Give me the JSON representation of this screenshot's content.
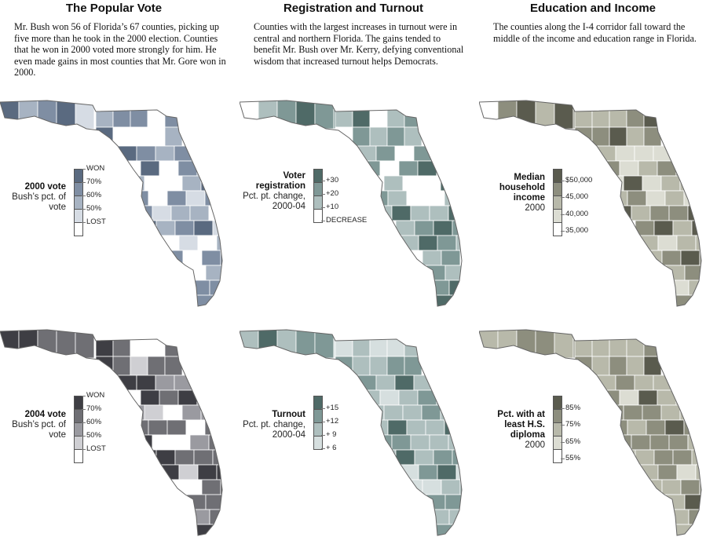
{
  "columns": [
    {
      "title": "The Popular Vote",
      "text": "Mr. Bush won 56 of Florida’s 67 counties, picking up five more than he took in the 2000 election. Counties that he won in 2000 voted more strongly for him. He even made gains in most counties that Mr. Gore won in 2000.",
      "maps": [
        {
          "legend_bold": "2000 vote",
          "legend_sub": "Bush’s pct. of vote",
          "ticks": [
            "WON",
            "70%",
            "60%",
            "50%",
            "LOST"
          ],
          "colors": [
            "#5a6a80",
            "#7f8ea3",
            "#a7b3c2",
            "#d6dce4",
            "#ffffff"
          ]
        },
        {
          "legend_bold": "2004 vote",
          "legend_sub": "Bush’s pct. of vote",
          "ticks": [
            "WON",
            "70%",
            "60%",
            "50%",
            "LOST"
          ],
          "colors": [
            "#3e3e44",
            "#6f6f74",
            "#9a9aa0",
            "#cfcfd3",
            "#ffffff"
          ]
        }
      ]
    },
    {
      "title": "Registration and Turnout",
      "text": "Counties with the largest increases in turnout were in central and northern Florida. The gains tended to benefit Mr. Bush over Mr. Kerry, defying conventional wisdom that increased turnout helps Democrats.",
      "maps": [
        {
          "legend_bold": "Voter registration",
          "legend_sub": "Pct. pt. change, 2000-04",
          "ticks": [
            "+30",
            "+20",
            "+10",
            "DECREASE"
          ],
          "colors": [
            "#4f6a67",
            "#7f9896",
            "#aebfbe",
            "#ffffff"
          ]
        },
        {
          "legend_bold": "Turnout",
          "legend_sub": "Pct. pt. change, 2000-04",
          "ticks": [
            "+15",
            "+12",
            "+ 9",
            "+ 6"
          ],
          "colors": [
            "#4f6a67",
            "#7f9896",
            "#aebfbe",
            "#d6dfdf"
          ]
        }
      ]
    },
    {
      "title": "Education and Income",
      "text": "The counties along the I-4 corridor fall toward the middle of the income and education range in Florida.",
      "maps": [
        {
          "legend_bold": "Median household income",
          "legend_sub": "2000",
          "ticks": [
            "$50,000",
            "45,000",
            "40,000",
            "35,000"
          ],
          "colors": [
            "#5a5b4e",
            "#8d8e7e",
            "#b8b9aa",
            "#dcddd3",
            "#ffffff"
          ]
        },
        {
          "legend_bold": "Pct. with at least H.S. diploma",
          "legend_sub": "2000",
          "ticks": [
            "85%",
            "75%",
            "65%",
            "55%"
          ],
          "colors": [
            "#5a5b4e",
            "#8d8e7e",
            "#b8b9aa",
            "#dcddd3",
            "#ffffff"
          ]
        }
      ]
    }
  ]
}
